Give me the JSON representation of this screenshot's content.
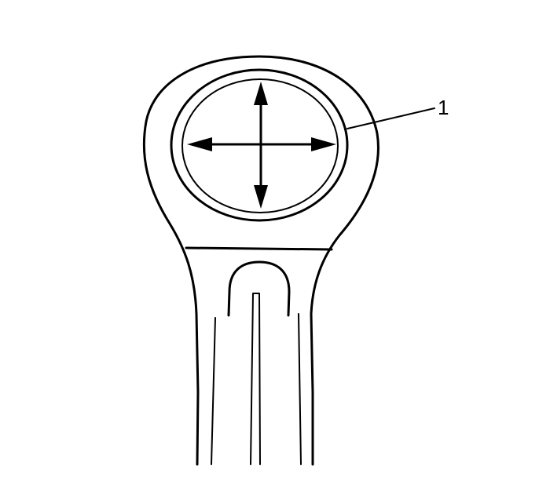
{
  "diagram": {
    "callouts": [
      {
        "id": "1",
        "label": "1",
        "target": "bearing-bore"
      }
    ],
    "colors": {
      "ink": "#000000",
      "paper": "#ffffff"
    }
  }
}
